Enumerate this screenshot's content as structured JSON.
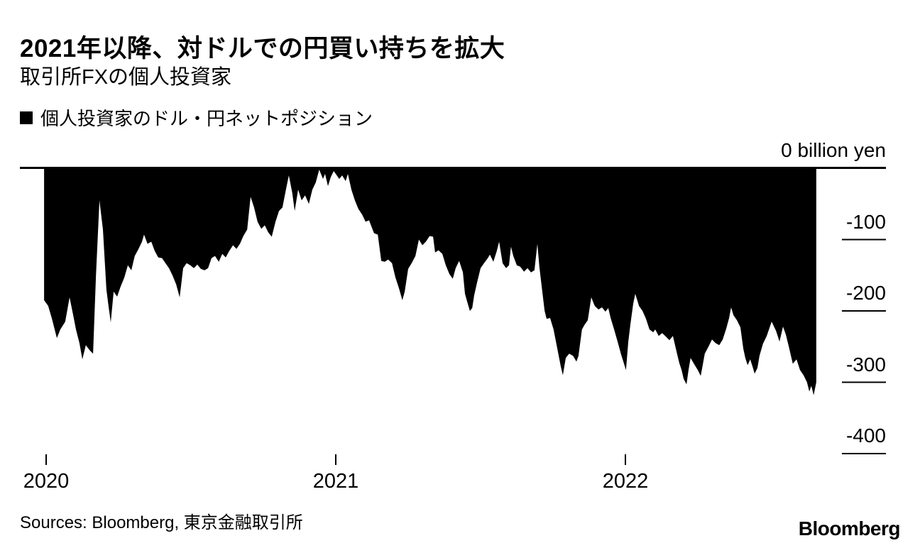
{
  "header": {
    "title": "2021年以降、対ドルでの円買い持ちを拡大",
    "subtitle": "取引所FXの個人投資家"
  },
  "legend": {
    "marker": "black-square",
    "marker_color": "#000000",
    "label": "個人投資家のドル・円ネットポジション"
  },
  "footer": {
    "sources": "Sources: Bloomberg, 東京金融取引所",
    "logo": "Bloomberg"
  },
  "colors": {
    "ink": "#000000",
    "background": "#ffffff"
  },
  "chart_data": {
    "type": "area",
    "title": "2021年以降、対ドルでの円買い持ちを拡大",
    "subtitle": "取引所FXの個人投資家",
    "series_name": "個人投資家のドル・円ネットポジション",
    "unit": "billion yen",
    "fill_color": "#000000",
    "background": "#ffffff",
    "grid": false,
    "legend_position": "top-left",
    "x_axis": {
      "ticks": [
        2020,
        2021,
        2022
      ],
      "labels": [
        "2020",
        "2021",
        "2022"
      ]
    },
    "y_axis": {
      "side": "right",
      "ticks": [
        0,
        -100,
        -200,
        -300,
        -400
      ],
      "labels": [
        "0 billion yen",
        "-100",
        "-200",
        "-300",
        "-400"
      ],
      "range": [
        -430,
        0
      ]
    },
    "points": [
      [
        2019.993,
        -185
      ],
      [
        2020.007,
        -193
      ],
      [
        2020.02,
        -211
      ],
      [
        2020.037,
        -238
      ],
      [
        2020.049,
        -226
      ],
      [
        2020.066,
        -215
      ],
      [
        2020.081,
        -181
      ],
      [
        2020.093,
        -205
      ],
      [
        2020.103,
        -226
      ],
      [
        2020.115,
        -245
      ],
      [
        2020.125,
        -268
      ],
      [
        2020.137,
        -248
      ],
      [
        2020.15,
        -255
      ],
      [
        2020.162,
        -260
      ],
      [
        2020.172,
        -150
      ],
      [
        2020.184,
        -45
      ],
      [
        2020.196,
        -86
      ],
      [
        2020.208,
        -170
      ],
      [
        2020.216,
        -195
      ],
      [
        2020.223,
        -216
      ],
      [
        2020.233,
        -173
      ],
      [
        2020.245,
        -180
      ],
      [
        2020.257,
        -166
      ],
      [
        2020.27,
        -153
      ],
      [
        2020.282,
        -136
      ],
      [
        2020.294,
        -143
      ],
      [
        2020.306,
        -123
      ],
      [
        2020.319,
        -113
      ],
      [
        2020.331,
        -103
      ],
      [
        2020.338,
        -93
      ],
      [
        2020.35,
        -106
      ],
      [
        2020.363,
        -103
      ],
      [
        2020.375,
        -116
      ],
      [
        2020.387,
        -125
      ],
      [
        2020.4,
        -126
      ],
      [
        2020.412,
        -133
      ],
      [
        2020.424,
        -140
      ],
      [
        2020.436,
        -150
      ],
      [
        2020.449,
        -163
      ],
      [
        2020.461,
        -181
      ],
      [
        2020.473,
        -140
      ],
      [
        2020.485,
        -133
      ],
      [
        2020.498,
        -136
      ],
      [
        2020.51,
        -140
      ],
      [
        2020.522,
        -135
      ],
      [
        2020.534,
        -141
      ],
      [
        2020.547,
        -143
      ],
      [
        2020.559,
        -140
      ],
      [
        2020.571,
        -126
      ],
      [
        2020.583,
        -123
      ],
      [
        2020.596,
        -131
      ],
      [
        2020.608,
        -120
      ],
      [
        2020.62,
        -125
      ],
      [
        2020.632,
        -116
      ],
      [
        2020.645,
        -108
      ],
      [
        2020.657,
        -113
      ],
      [
        2020.669,
        -106
      ],
      [
        2020.681,
        -95
      ],
      [
        2020.694,
        -86
      ],
      [
        2020.706,
        -40
      ],
      [
        2020.718,
        -55
      ],
      [
        2020.73,
        -75
      ],
      [
        2020.743,
        -85
      ],
      [
        2020.755,
        -80
      ],
      [
        2020.767,
        -90
      ],
      [
        2020.779,
        -96
      ],
      [
        2020.792,
        -75
      ],
      [
        2020.804,
        -60
      ],
      [
        2020.816,
        -55
      ],
      [
        2020.828,
        -30
      ],
      [
        2020.838,
        -10
      ],
      [
        2020.85,
        -35
      ],
      [
        2020.858,
        -60
      ],
      [
        2020.87,
        -30
      ],
      [
        2020.882,
        -45
      ],
      [
        2020.894,
        -38
      ],
      [
        2020.907,
        -50
      ],
      [
        2020.919,
        -30
      ],
      [
        2020.931,
        -20
      ],
      [
        2020.943,
        -2
      ],
      [
        2020.956,
        -15
      ],
      [
        2020.963,
        -8
      ],
      [
        2020.973,
        -25
      ],
      [
        2020.983,
        -12
      ],
      [
        2020.993,
        -4
      ],
      [
        2021.0,
        -8
      ],
      [
        2021.012,
        -15
      ],
      [
        2021.022,
        -10
      ],
      [
        2021.034,
        -18
      ],
      [
        2021.042,
        -8
      ],
      [
        2021.054,
        -30
      ],
      [
        2021.066,
        -45
      ],
      [
        2021.078,
        -57
      ],
      [
        2021.091,
        -65
      ],
      [
        2021.103,
        -75
      ],
      [
        2021.115,
        -73
      ],
      [
        2021.132,
        -91
      ],
      [
        2021.145,
        -93
      ],
      [
        2021.157,
        -130
      ],
      [
        2021.169,
        -131
      ],
      [
        2021.181,
        -128
      ],
      [
        2021.194,
        -133
      ],
      [
        2021.206,
        -153
      ],
      [
        2021.218,
        -168
      ],
      [
        2021.23,
        -185
      ],
      [
        2021.238,
        -173
      ],
      [
        2021.25,
        -141
      ],
      [
        2021.262,
        -133
      ],
      [
        2021.275,
        -123
      ],
      [
        2021.287,
        -100
      ],
      [
        2021.299,
        -108
      ],
      [
        2021.311,
        -103
      ],
      [
        2021.324,
        -95
      ],
      [
        2021.336,
        -96
      ],
      [
        2021.343,
        -118
      ],
      [
        2021.355,
        -115
      ],
      [
        2021.368,
        -120
      ],
      [
        2021.38,
        -136
      ],
      [
        2021.392,
        -148
      ],
      [
        2021.404,
        -155
      ],
      [
        2021.414,
        -140
      ],
      [
        2021.426,
        -130
      ],
      [
        2021.439,
        -146
      ],
      [
        2021.446,
        -176
      ],
      [
        2021.453,
        -186
      ],
      [
        2021.463,
        -200
      ],
      [
        2021.471,
        -196
      ],
      [
        2021.478,
        -178
      ],
      [
        2021.488,
        -160
      ],
      [
        2021.5,
        -140
      ],
      [
        2021.512,
        -133
      ],
      [
        2021.525,
        -126
      ],
      [
        2021.532,
        -121
      ],
      [
        2021.544,
        -131
      ],
      [
        2021.556,
        -116
      ],
      [
        2021.564,
        -103
      ],
      [
        2021.576,
        -133
      ],
      [
        2021.588,
        -140
      ],
      [
        2021.598,
        -136
      ],
      [
        2021.605,
        -110
      ],
      [
        2021.613,
        -123
      ],
      [
        2021.625,
        -136
      ],
      [
        2021.637,
        -138
      ],
      [
        2021.65,
        -145
      ],
      [
        2021.662,
        -140
      ],
      [
        2021.674,
        -146
      ],
      [
        2021.686,
        -143
      ],
      [
        2021.696,
        -106
      ],
      [
        2021.703,
        -138
      ],
      [
        2021.711,
        -166
      ],
      [
        2021.721,
        -200
      ],
      [
        2021.728,
        -211
      ],
      [
        2021.74,
        -210
      ],
      [
        2021.752,
        -226
      ],
      [
        2021.765,
        -253
      ],
      [
        2021.777,
        -278
      ],
      [
        2021.784,
        -290
      ],
      [
        2021.794,
        -266
      ],
      [
        2021.806,
        -260
      ],
      [
        2021.819,
        -263
      ],
      [
        2021.831,
        -271
      ],
      [
        2021.838,
        -263
      ],
      [
        2021.85,
        -226
      ],
      [
        2021.858,
        -220
      ],
      [
        2021.87,
        -213
      ],
      [
        2021.882,
        -181
      ],
      [
        2021.894,
        -193
      ],
      [
        2021.907,
        -198
      ],
      [
        2021.919,
        -195
      ],
      [
        2021.931,
        -201
      ],
      [
        2021.941,
        -196
      ],
      [
        2021.949,
        -210
      ],
      [
        2021.961,
        -226
      ],
      [
        2021.973,
        -243
      ],
      [
        2021.985,
        -261
      ],
      [
        2021.993,
        -271
      ],
      [
        2022.002,
        -283
      ],
      [
        2022.01,
        -243
      ],
      [
        2022.017,
        -220
      ],
      [
        2022.027,
        -190
      ],
      [
        2022.034,
        -176
      ],
      [
        2022.047,
        -193
      ],
      [
        2022.059,
        -200
      ],
      [
        2022.071,
        -211
      ],
      [
        2022.083,
        -226
      ],
      [
        2022.096,
        -230
      ],
      [
        2022.103,
        -226
      ],
      [
        2022.115,
        -235
      ],
      [
        2022.127,
        -231
      ],
      [
        2022.14,
        -236
      ],
      [
        2022.152,
        -241
      ],
      [
        2022.164,
        -235
      ],
      [
        2022.176,
        -256
      ],
      [
        2022.186,
        -273
      ],
      [
        2022.194,
        -283
      ],
      [
        2022.201,
        -295
      ],
      [
        2022.211,
        -303
      ],
      [
        2022.218,
        -283
      ],
      [
        2022.225,
        -266
      ],
      [
        2022.238,
        -275
      ],
      [
        2022.25,
        -283
      ],
      [
        2022.26,
        -291
      ],
      [
        2022.267,
        -276
      ],
      [
        2022.274,
        -260
      ],
      [
        2022.287,
        -250
      ],
      [
        2022.299,
        -240
      ],
      [
        2022.311,
        -245
      ],
      [
        2022.324,
        -248
      ],
      [
        2022.336,
        -240
      ],
      [
        2022.348,
        -225
      ],
      [
        2022.358,
        -210
      ],
      [
        2022.365,
        -195
      ],
      [
        2022.373,
        -206
      ],
      [
        2022.385,
        -213
      ],
      [
        2022.397,
        -223
      ],
      [
        2022.407,
        -253
      ],
      [
        2022.414,
        -266
      ],
      [
        2022.422,
        -276
      ],
      [
        2022.431,
        -268
      ],
      [
        2022.439,
        -278
      ],
      [
        2022.446,
        -288
      ],
      [
        2022.456,
        -280
      ],
      [
        2022.463,
        -263
      ],
      [
        2022.475,
        -246
      ],
      [
        2022.488,
        -235
      ],
      [
        2022.505,
        -215
      ],
      [
        2022.52,
        -228
      ],
      [
        2022.532,
        -243
      ],
      [
        2022.544,
        -222
      ],
      [
        2022.554,
        -233
      ],
      [
        2022.566,
        -253
      ],
      [
        2022.578,
        -274
      ],
      [
        2022.591,
        -268
      ],
      [
        2022.603,
        -283
      ],
      [
        2022.615,
        -290
      ],
      [
        2022.627,
        -300
      ],
      [
        2022.635,
        -313
      ],
      [
        2022.642,
        -305
      ],
      [
        2022.65,
        -318
      ],
      [
        2022.659,
        -300
      ]
    ]
  }
}
